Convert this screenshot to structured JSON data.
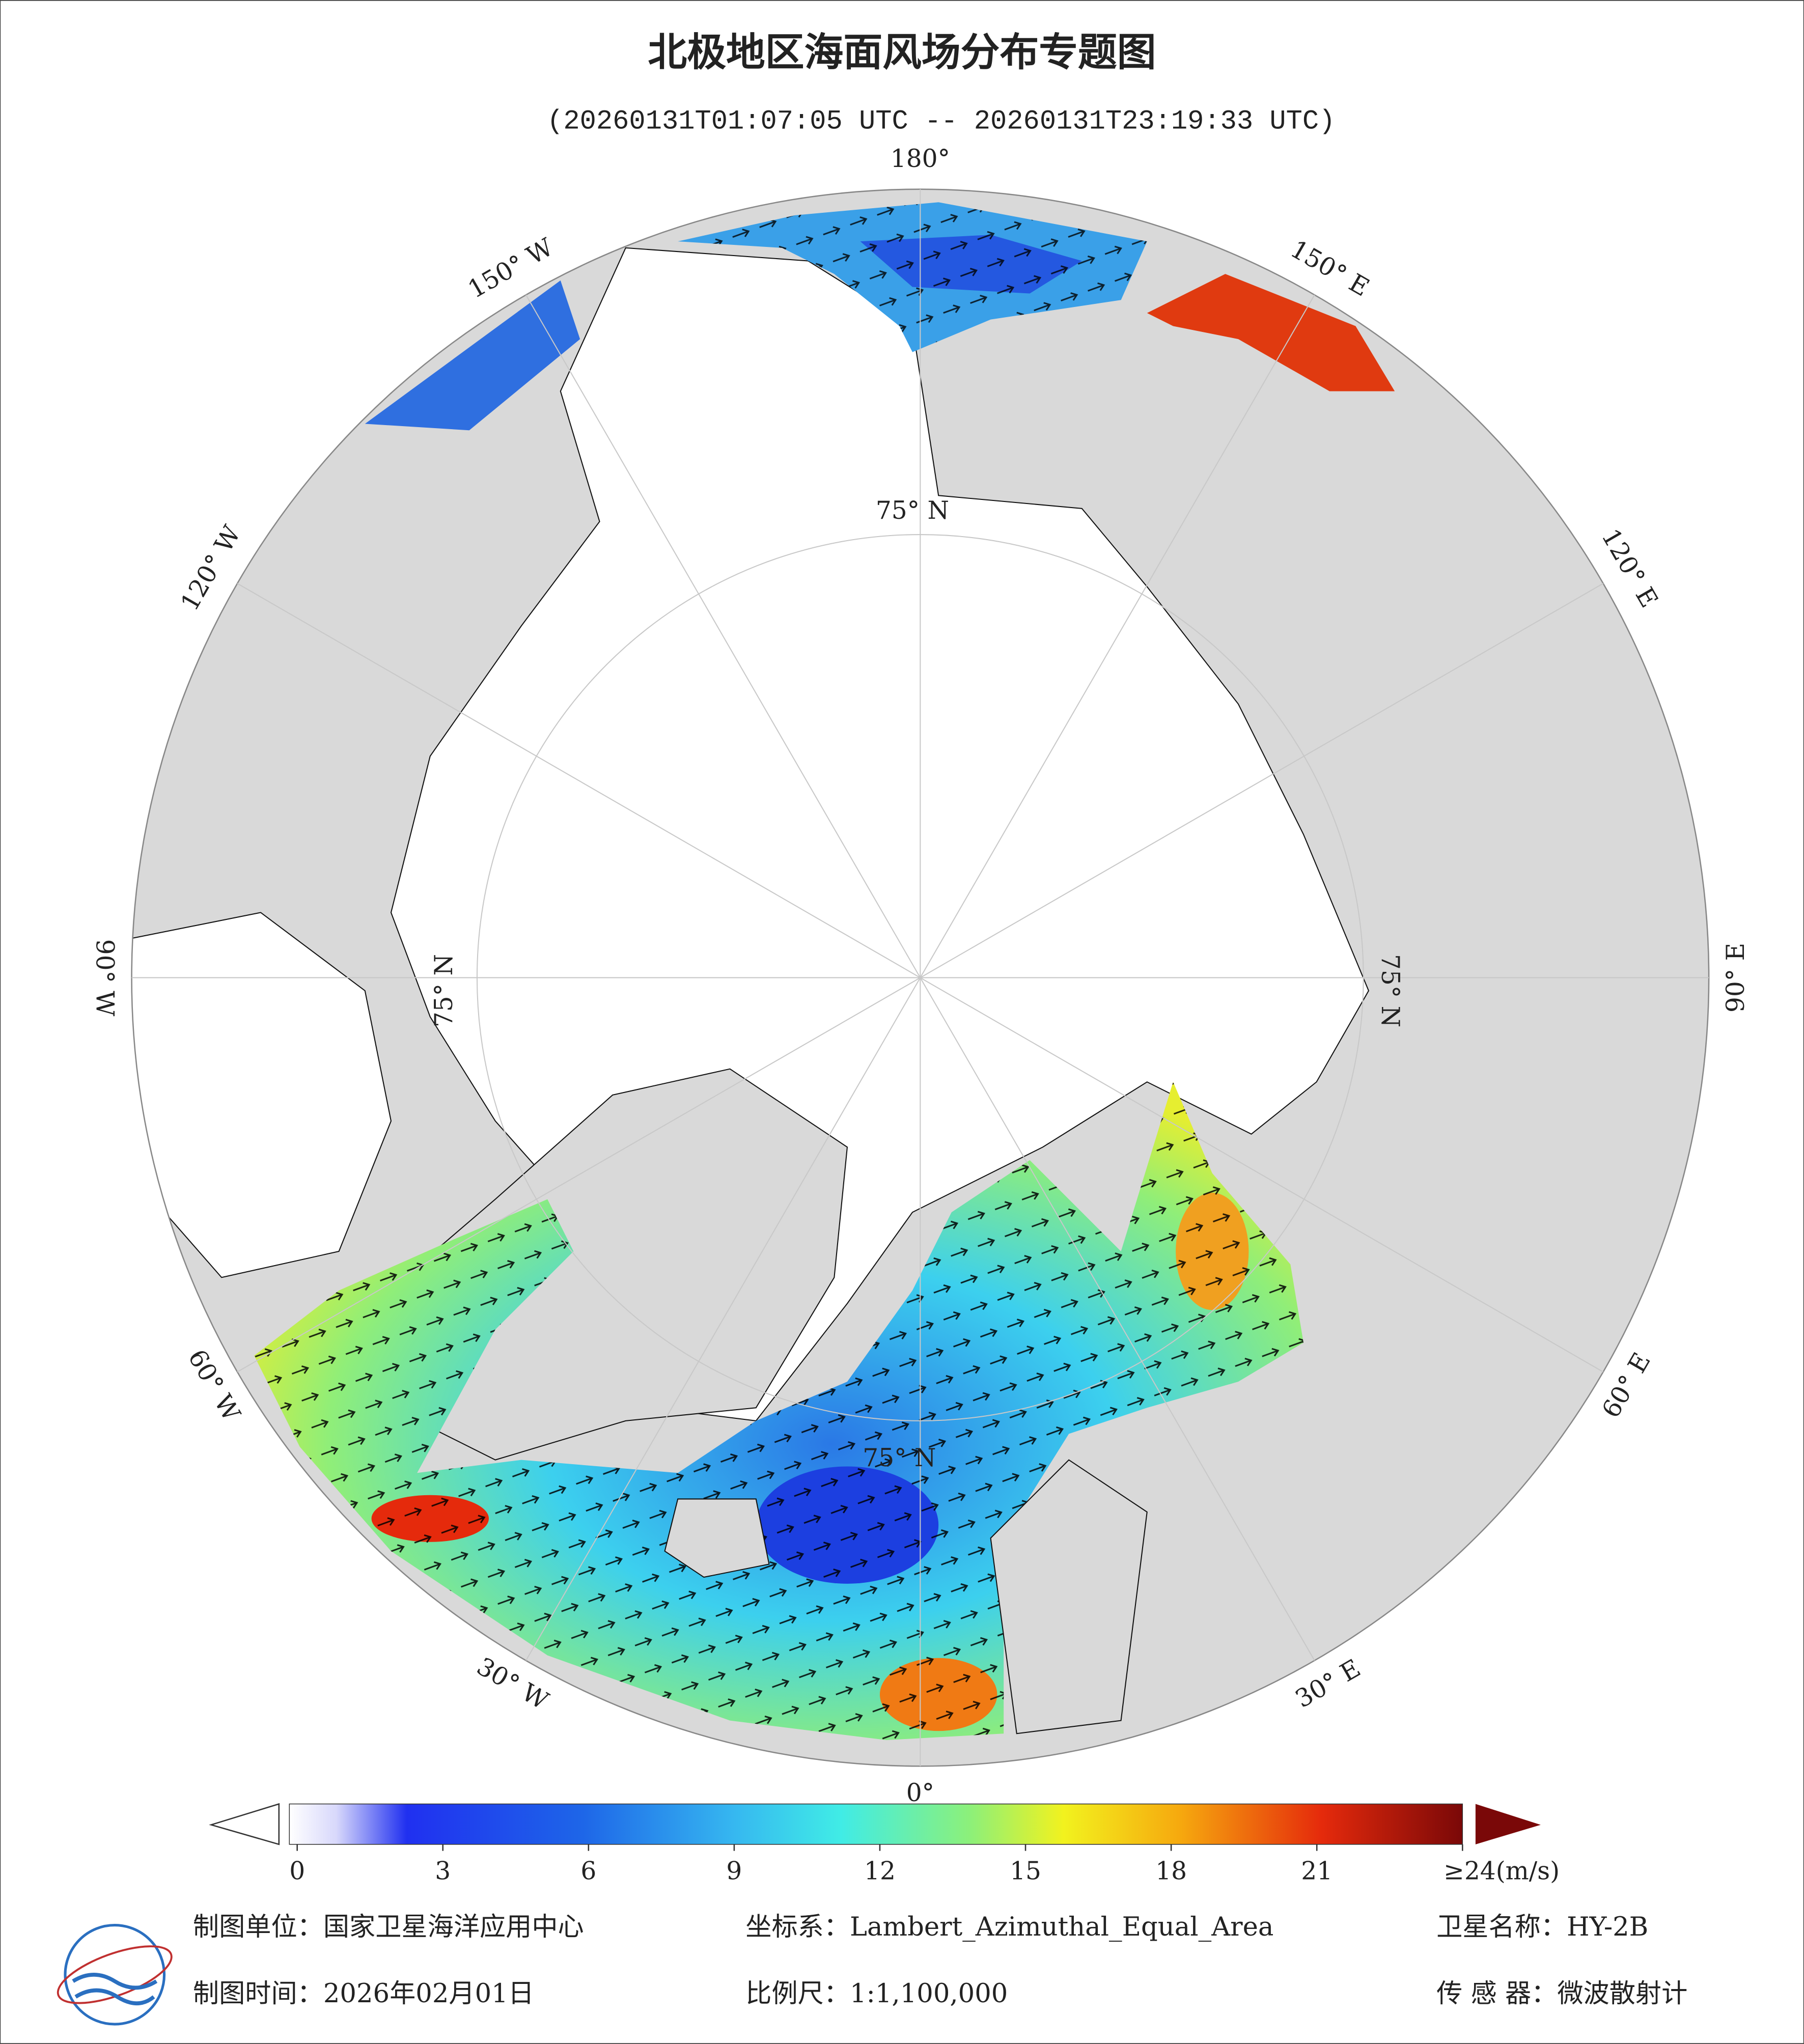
{
  "header": {
    "title": "北极地区海面风场分布专题图",
    "subtitle": "(20260131T01:07:05 UTC -- 20260131T23:19:33 UTC)"
  },
  "map": {
    "longitude_labels": [
      "0°",
      "30° E",
      "60° E",
      "90° E",
      "120° E",
      "150° E",
      "180°",
      "150° W",
      "120° W",
      "90° W",
      "60° W",
      "30° W"
    ],
    "latitude_label": "75° N"
  },
  "colorbar": {
    "lim": [
      0,
      24
    ],
    "ticks": [
      0,
      3,
      6,
      9,
      12,
      15,
      18,
      21,
      {
        "value": 24,
        "label": "≥24(m/s)"
      }
    ]
  },
  "footer": {
    "unit": "制图单位：国家卫星海洋应用中心",
    "coordinate_system": "坐标系：Lambert_Azimuthal_Equal_Area",
    "satellite": "卫星名称：HY-2B",
    "date": "制图时间：2026年02月01日",
    "scale": "比例尺：1:1,100,000",
    "sensor": "传 感 器：微波散射计"
  }
}
